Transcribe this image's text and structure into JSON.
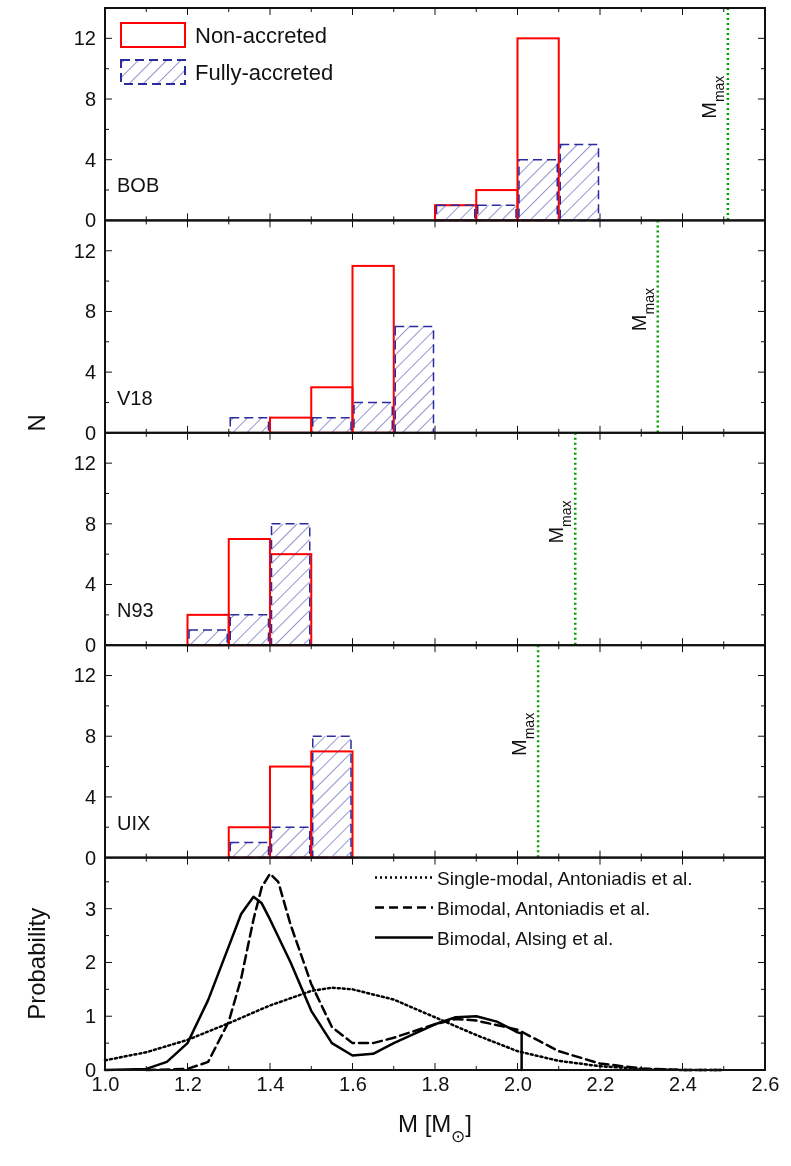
{
  "chart_data": [
    {
      "type": "histogram",
      "bins": [
        1.8,
        1.9,
        2.0,
        2.1,
        2.2
      ],
      "xlim": [
        1.0,
        2.6
      ],
      "ylim": [
        0,
        14
      ],
      "xticks": [
        1.0,
        {
          "value": 1.1,
          "label": null
        },
        1.2,
        {
          "value": 1.3,
          "label": null
        },
        1.4,
        {
          "value": 1.5,
          "label": null
        },
        1.6,
        {
          "value": 1.7,
          "label": null
        },
        1.8,
        {
          "value": 1.9,
          "label": null
        },
        2.0,
        {
          "value": 2.1,
          "label": null
        },
        2.2,
        {
          "value": 2.3,
          "label": null
        },
        2.4,
        {
          "value": 2.5,
          "label": null
        },
        2.6
      ],
      "yticks": [
        0,
        {
          "value": 2,
          "label": null
        },
        4,
        {
          "value": 6,
          "label": null
        },
        8,
        {
          "value": 10,
          "label": null
        },
        12
      ],
      "tick_labels": "y",
      "legend": "top left",
      "series": [
        {
          "name": "Non-accreted",
          "color": "#ff0000",
          "line_style": "solid",
          "values": [
            1,
            2,
            12,
            0
          ]
        },
        {
          "name": "Fully-accreted",
          "color": "#2b2ba0",
          "line_style": "dashed",
          "values": [
            1,
            1,
            4,
            5
          ]
        }
      ],
      "ref_lines": [
        {
          "axis": "x",
          "value": 2.51,
          "label": "M$_{max}$",
          "color": "#00a000",
          "line_style": "dotted"
        }
      ],
      "annotations": [
        "BOB"
      ]
    },
    {
      "type": "histogram",
      "bins": [
        1.3,
        1.4,
        1.5,
        1.6,
        1.7,
        1.8
      ],
      "xlim": [
        1.0,
        2.6
      ],
      "ylim": [
        0,
        14
      ],
      "ylabel": "N",
      "xticks": [
        1.0,
        {
          "value": 1.1,
          "label": null
        },
        1.2,
        {
          "value": 1.3,
          "label": null
        },
        1.4,
        {
          "value": 1.5,
          "label": null
        },
        1.6,
        {
          "value": 1.7,
          "label": null
        },
        1.8,
        {
          "value": 1.9,
          "label": null
        },
        2.0,
        {
          "value": 2.1,
          "label": null
        },
        2.2,
        {
          "value": 2.3,
          "label": null
        },
        2.4,
        {
          "value": 2.5,
          "label": null
        },
        2.6
      ],
      "yticks": [
        0,
        {
          "value": 2,
          "label": null
        },
        4,
        {
          "value": 6,
          "label": null
        },
        8,
        {
          "value": 10,
          "label": null
        },
        12
      ],
      "tick_labels": "y",
      "series": [
        {
          "color": "#ff0000",
          "line_style": "solid",
          "values": [
            0,
            1,
            3,
            11,
            0
          ]
        },
        {
          "color": "#2b2ba0",
          "line_style": "dashed",
          "values": [
            1,
            0,
            1,
            2,
            7
          ]
        }
      ],
      "ref_lines": [
        {
          "axis": "x",
          "value": 2.34,
          "label": "M$_{max}$",
          "color": "#00a000",
          "line_style": "dotted"
        }
      ],
      "annotations": [
        "V18"
      ]
    },
    {
      "type": "histogram",
      "bins": [
        1.2,
        1.3,
        1.4,
        1.5
      ],
      "xlim": [
        1.0,
        2.6
      ],
      "ylim": [
        0,
        14
      ],
      "xticks": [
        1.0,
        {
          "value": 1.1,
          "label": null
        },
        1.2,
        {
          "value": 1.3,
          "label": null
        },
        1.4,
        {
          "value": 1.5,
          "label": null
        },
        1.6,
        {
          "value": 1.7,
          "label": null
        },
        1.8,
        {
          "value": 1.9,
          "label": null
        },
        2.0,
        {
          "value": 2.1,
          "label": null
        },
        2.2,
        {
          "value": 2.3,
          "label": null
        },
        2.4,
        {
          "value": 2.5,
          "label": null
        },
        2.6
      ],
      "yticks": [
        0,
        {
          "value": 2,
          "label": null
        },
        4,
        {
          "value": 6,
          "label": null
        },
        8,
        {
          "value": 10,
          "label": null
        },
        12
      ],
      "tick_labels": "y",
      "series": [
        {
          "color": "#ff0000",
          "line_style": "solid",
          "values": [
            2,
            7,
            6
          ]
        },
        {
          "color": "#2b2ba0",
          "line_style": "dashed",
          "values": [
            1,
            2,
            8
          ]
        }
      ],
      "ref_lines": [
        {
          "axis": "x",
          "value": 2.14,
          "label": "M$_{max}$",
          "color": "#00a000",
          "line_style": "dotted"
        }
      ],
      "annotations": [
        "N93"
      ]
    },
    {
      "type": "histogram",
      "bins": [
        1.3,
        1.4,
        1.5,
        1.6
      ],
      "xlim": [
        1.0,
        2.6
      ],
      "ylim": [
        0,
        14
      ],
      "xticks": [
        1.0,
        {
          "value": 1.1,
          "label": null
        },
        1.2,
        {
          "value": 1.3,
          "label": null
        },
        1.4,
        {
          "value": 1.5,
          "label": null
        },
        1.6,
        {
          "value": 1.7,
          "label": null
        },
        1.8,
        {
          "value": 1.9,
          "label": null
        },
        2.0,
        {
          "value": 2.1,
          "label": null
        },
        2.2,
        {
          "value": 2.3,
          "label": null
        },
        2.4,
        {
          "value": 2.5,
          "label": null
        },
        2.6
      ],
      "yticks": [
        0,
        {
          "value": 2,
          "label": null
        },
        4,
        {
          "value": 6,
          "label": null
        },
        8,
        {
          "value": 10,
          "label": null
        },
        12
      ],
      "tick_labels": "y",
      "series": [
        {
          "color": "#ff0000",
          "line_style": "solid",
          "values": [
            2,
            6,
            7
          ]
        },
        {
          "color": "#2b2ba0",
          "line_style": "dashed",
          "values": [
            1,
            2,
            8
          ]
        }
      ],
      "ref_lines": [
        {
          "axis": "x",
          "value": 2.05,
          "label": "M$_{max}$",
          "color": "#00a000",
          "line_style": "dotted"
        }
      ],
      "annotations": [
        "UIX"
      ]
    },
    {
      "type": "line",
      "xlabel": "M [M$_{⊙}$]",
      "ylabel": "Probability",
      "xlim": [
        1.0,
        2.6
      ],
      "ylim": [
        0,
        3.95
      ],
      "xticks": [
        {
          "value": 1.0,
          "label": "1.0"
        },
        {
          "value": 1.1,
          "label": null
        },
        {
          "value": 1.2,
          "label": "1.2"
        },
        {
          "value": 1.3,
          "label": null
        },
        {
          "value": 1.4,
          "label": "1.4"
        },
        {
          "value": 1.5,
          "label": null
        },
        {
          "value": 1.6,
          "label": "1.6"
        },
        {
          "value": 1.7,
          "label": null
        },
        {
          "value": 1.8,
          "label": "1.8"
        },
        {
          "value": 1.9,
          "label": null
        },
        {
          "value": 2.0,
          "label": "2.0"
        },
        {
          "value": 2.1,
          "label": null
        },
        {
          "value": 2.2,
          "label": "2.2"
        },
        {
          "value": 2.3,
          "label": null
        },
        {
          "value": 2.4,
          "label": "2.4"
        },
        {
          "value": 2.5,
          "label": null
        },
        {
          "value": 2.6,
          "label": "2.6"
        }
      ],
      "yticks": [
        0,
        {
          "value": 0.5,
          "label": null
        },
        1,
        {
          "value": 1.5,
          "label": null
        },
        2,
        {
          "value": 2.5,
          "label": null
        },
        3,
        {
          "value": 3.5,
          "label": null
        }
      ],
      "legend": "top right",
      "series": [
        {
          "name": "Single-modal, Antoniadis et al.",
          "color": "#000000",
          "line_style": "dotted",
          "x": [
            1.0,
            1.1,
            1.2,
            1.3,
            1.4,
            1.5,
            1.55,
            1.6,
            1.7,
            1.8,
            1.9,
            2.0,
            2.1,
            2.2,
            2.3,
            2.4,
            2.5
          ],
          "values": [
            0.18,
            0.33,
            0.56,
            0.87,
            1.2,
            1.47,
            1.53,
            1.5,
            1.31,
            0.98,
            0.65,
            0.35,
            0.17,
            0.07,
            0.02,
            0.0,
            0.0
          ]
        },
        {
          "name": "Bimodal, Antoniadis et al.",
          "color": "#000000",
          "line_style": "dashed",
          "x": [
            1.1,
            1.2,
            1.25,
            1.3,
            1.33,
            1.36,
            1.38,
            1.4,
            1.42,
            1.45,
            1.5,
            1.55,
            1.6,
            1.65,
            1.7,
            1.8,
            1.85,
            1.9,
            2.0,
            2.05,
            2.1,
            2.2,
            2.3,
            2.4,
            2.5
          ],
          "values": [
            0,
            0.02,
            0.15,
            0.9,
            1.7,
            2.8,
            3.4,
            3.65,
            3.5,
            2.7,
            1.6,
            0.8,
            0.5,
            0.5,
            0.6,
            0.85,
            0.95,
            0.92,
            0.75,
            0.55,
            0.35,
            0.12,
            0.03,
            0.0,
            0.0
          ]
        },
        {
          "name": "Bimodal, Alsing et al.",
          "color": "#000000",
          "line_style": "solid",
          "x": [
            1.0,
            1.1,
            1.15,
            1.2,
            1.25,
            1.3,
            1.33,
            1.36,
            1.38,
            1.4,
            1.45,
            1.5,
            1.55,
            1.6,
            1.65,
            1.7,
            1.8,
            1.85,
            1.9,
            1.95,
            2.0,
            2.01,
            2.01
          ],
          "values": [
            0,
            0.02,
            0.15,
            0.5,
            1.3,
            2.3,
            2.9,
            3.22,
            3.1,
            2.8,
            2.0,
            1.1,
            0.5,
            0.27,
            0.3,
            0.5,
            0.85,
            0.98,
            1.0,
            0.9,
            0.7,
            0.68,
            0
          ]
        }
      ]
    }
  ]
}
